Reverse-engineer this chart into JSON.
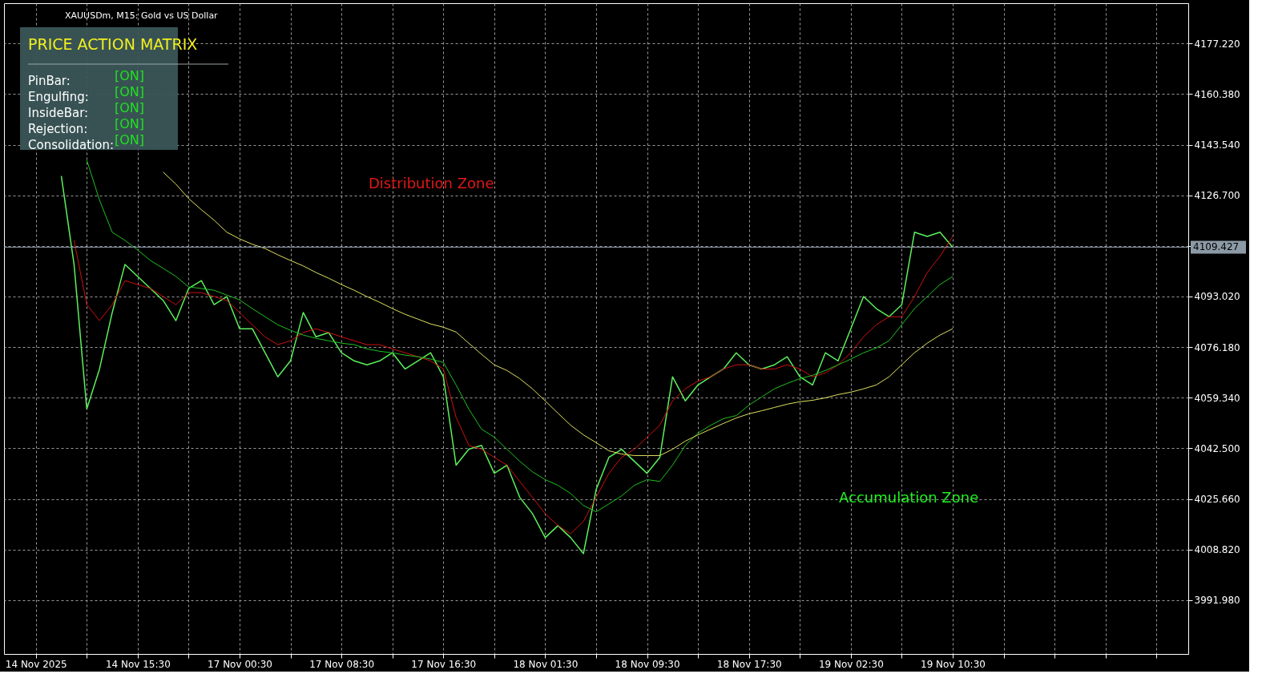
{
  "chart_data": {
    "type": "line",
    "title": "XAUUSDm, M15:  Gold vs US Dollar",
    "categories": [
      null,
      null,
      "14 Nov 2025",
      null,
      null,
      null,
      null,
      null,
      null,
      null,
      "14 Nov 15:30",
      null,
      null,
      null,
      null,
      null,
      null,
      null,
      "17 Nov 00:30",
      null,
      null,
      null,
      null,
      null,
      null,
      null,
      "17 Nov 08:30",
      null,
      null,
      null,
      null,
      null,
      null,
      null,
      "17 Nov 16:30",
      null,
      null,
      null,
      null,
      null,
      null,
      null,
      "18 Nov 01:30",
      null,
      null,
      null,
      null,
      null,
      null,
      null,
      "18 Nov 09:30",
      null,
      null,
      null,
      null,
      null,
      null,
      null,
      "18 Nov 17:30",
      null,
      null,
      null,
      null,
      null,
      null,
      null,
      "19 Nov 02:30",
      null,
      null,
      null,
      null,
      null,
      null,
      null,
      "19 Nov 10:30",
      null,
      null,
      null,
      null,
      null,
      null,
      null,
      null,
      null,
      null,
      null,
      null,
      null,
      null,
      null,
      null,
      null,
      null
    ],
    "series": [
      {
        "color": "#5cf05c",
        "values": [
          null,
          null,
          null,
          null,
          4133.1,
          4103.7,
          4055.6,
          4068.9,
          4087.7,
          4103.7,
          4099.7,
          4095.7,
          4091.7,
          4085.0,
          4095.7,
          4098.3,
          4090.3,
          4093.0,
          4082.3,
          4082.3,
          4074.3,
          4066.3,
          4071.6,
          4087.7,
          4079.6,
          4081.0,
          4074.3,
          4071.6,
          4070.3,
          4071.6,
          4074.3,
          4068.9,
          4071.6,
          4074.3,
          4066.3,
          4036.9,
          4042.2,
          4043.5,
          4034.2,
          4036.9,
          4026.2,
          4020.8,
          4012.8,
          4016.8,
          4012.8,
          4007.5,
          4028.8,
          4039.5,
          4042.2,
          4038.2,
          4034.2,
          4039.5,
          4066.3,
          4058.3,
          4063.6,
          4066.3,
          4068.9,
          4074.3,
          4070.3,
          4068.9,
          4070.3,
          4073.0,
          4066.3,
          4063.6,
          4074.3,
          4071.6,
          4082.3,
          4093.0,
          4089.0,
          4086.3,
          4090.3,
          4114.4,
          4113.0,
          4114.4,
          4109.4,
          null,
          null,
          null,
          null,
          null,
          null,
          null,
          null,
          null,
          null,
          null,
          null,
          null,
          null,
          null,
          null,
          null,
          null
        ]
      },
      {
        "color": "#d01010",
        "values": [
          null,
          null,
          null,
          null,
          null,
          4111.7,
          4090.3,
          4085.0,
          4090.3,
          4098.3,
          4097.0,
          4095.7,
          4093.0,
          4090.3,
          4094.3,
          4094.3,
          4093.0,
          4091.7,
          4087.7,
          4083.6,
          4079.6,
          4077.0,
          4078.3,
          4081.0,
          4082.3,
          4081.0,
          4079.6,
          4078.3,
          4077.0,
          4077.0,
          4075.6,
          4074.3,
          4073.0,
          4071.6,
          4068.9,
          4052.9,
          4043.5,
          4042.2,
          4039.5,
          4036.9,
          4031.5,
          4026.2,
          4020.8,
          4016.8,
          4014.1,
          4018.2,
          4026.2,
          4034.2,
          4039.5,
          4042.2,
          4046.2,
          4050.2,
          4058.3,
          4062.3,
          4064.9,
          4066.3,
          4068.9,
          4070.3,
          4070.3,
          4068.9,
          4068.9,
          4070.3,
          4068.9,
          4066.3,
          4067.6,
          4070.3,
          4074.3,
          4079.6,
          4083.6,
          4086.3,
          4086.3,
          4093.0,
          4101.0,
          4106.4,
          4113.0,
          null,
          null,
          null,
          null,
          null,
          null,
          null,
          null,
          null,
          null,
          null,
          null,
          null,
          null,
          null,
          null,
          null,
          null
        ]
      },
      {
        "color": "#20c020",
        "values": [
          null,
          null,
          null,
          null,
          null,
          null,
          4138.4,
          4125.1,
          4114.4,
          4111.7,
          4108.5,
          4105.0,
          4102.4,
          4099.7,
          4096.2,
          4095.7,
          4095.1,
          4093.5,
          4091.9,
          4089.0,
          4086.3,
          4083.6,
          4081.8,
          4080.2,
          4079.1,
          4078.3,
          4077.5,
          4077.0,
          4075.6,
          4074.8,
          4074.3,
          4073.5,
          4073.0,
          4072.2,
          4071.1,
          4063.6,
          4055.6,
          4048.9,
          4046.2,
          4042.2,
          4038.2,
          4034.7,
          4032.1,
          4030.2,
          4027.5,
          4023.5,
          4021.4,
          4024.0,
          4026.7,
          4030.2,
          4032.1,
          4031.5,
          4036.9,
          4043.5,
          4047.6,
          4050.2,
          4052.4,
          4053.4,
          4056.9,
          4059.6,
          4062.3,
          4064.1,
          4065.7,
          4066.8,
          4068.4,
          4070.3,
          4072.2,
          4074.3,
          4075.9,
          4078.3,
          4083.6,
          4089.0,
          4093.0,
          4097.0,
          4099.7,
          null,
          null,
          null,
          null,
          null,
          null,
          null,
          null,
          null,
          null,
          null,
          null,
          null,
          null,
          null,
          null,
          null,
          null
        ]
      },
      {
        "color": "#e0e060",
        "values": [
          null,
          null,
          null,
          null,
          null,
          null,
          null,
          null,
          null,
          null,
          null,
          null,
          4134.4,
          4130.4,
          4125.6,
          4121.9,
          4118.4,
          4114.4,
          4112.2,
          4110.4,
          4109.0,
          4106.9,
          4105.0,
          4103.2,
          4101.0,
          4099.1,
          4097.0,
          4095.1,
          4093.0,
          4091.1,
          4089.0,
          4087.1,
          4085.5,
          4083.9,
          4082.8,
          4081.2,
          4077.5,
          4073.8,
          4070.3,
          4068.4,
          4065.7,
          4062.3,
          4058.3,
          4054.2,
          4050.2,
          4047.0,
          4044.4,
          4041.7,
          4040.6,
          4040.1,
          4040.1,
          4040.1,
          4042.2,
          4044.9,
          4047.0,
          4048.9,
          4050.8,
          4052.6,
          4054.0,
          4055.0,
          4056.1,
          4057.2,
          4058.0,
          4058.5,
          4059.3,
          4060.4,
          4061.2,
          4062.3,
          4063.6,
          4066.3,
          4070.3,
          4074.3,
          4077.5,
          4080.2,
          4082.3,
          null,
          null,
          null,
          null,
          null,
          null,
          null,
          null,
          null,
          null,
          null,
          null,
          null,
          null,
          null,
          null,
          null,
          null
        ]
      }
    ],
    "ylim": [
      3974.1,
      4190.6
    ],
    "yticks": [
      {
        "value": 4177.22,
        "label": "4177.220"
      },
      {
        "value": 4160.38,
        "label": "4160.380"
      },
      {
        "value": 4143.54,
        "label": "4143.540"
      },
      {
        "value": 4126.7,
        "label": "4126.700"
      },
      {
        "value": 4109.86,
        "label": null
      },
      {
        "value": 4093.02,
        "label": "4093.020"
      },
      {
        "value": 4076.18,
        "label": "4076.180"
      },
      {
        "value": 4059.34,
        "label": "4059.340"
      },
      {
        "value": 4042.5,
        "label": "4042.500"
      },
      {
        "value": 4025.66,
        "label": "4025.660"
      },
      {
        "value": 4008.82,
        "label": "4008.820"
      },
      {
        "value": 3991.98,
        "label": "3991.980"
      }
    ],
    "ref_lines": [
      {
        "axis": "y",
        "value": 4109.427,
        "label": "4109.427",
        "color": "#8c9aa6"
      }
    ],
    "annotations": [
      "PRICE ACTION MATRIX",
      "PinBar:",
      "Engulfing:",
      "InsideBar:",
      "Rejection:",
      "Consolidation:",
      "[ON]",
      "[ON]",
      "[ON]",
      "[ON]",
      "[ON]",
      "Distribution Zone",
      "Accumulation Zone"
    ],
    "grid": true,
    "marker": "none",
    "line_style": "solid"
  }
}
